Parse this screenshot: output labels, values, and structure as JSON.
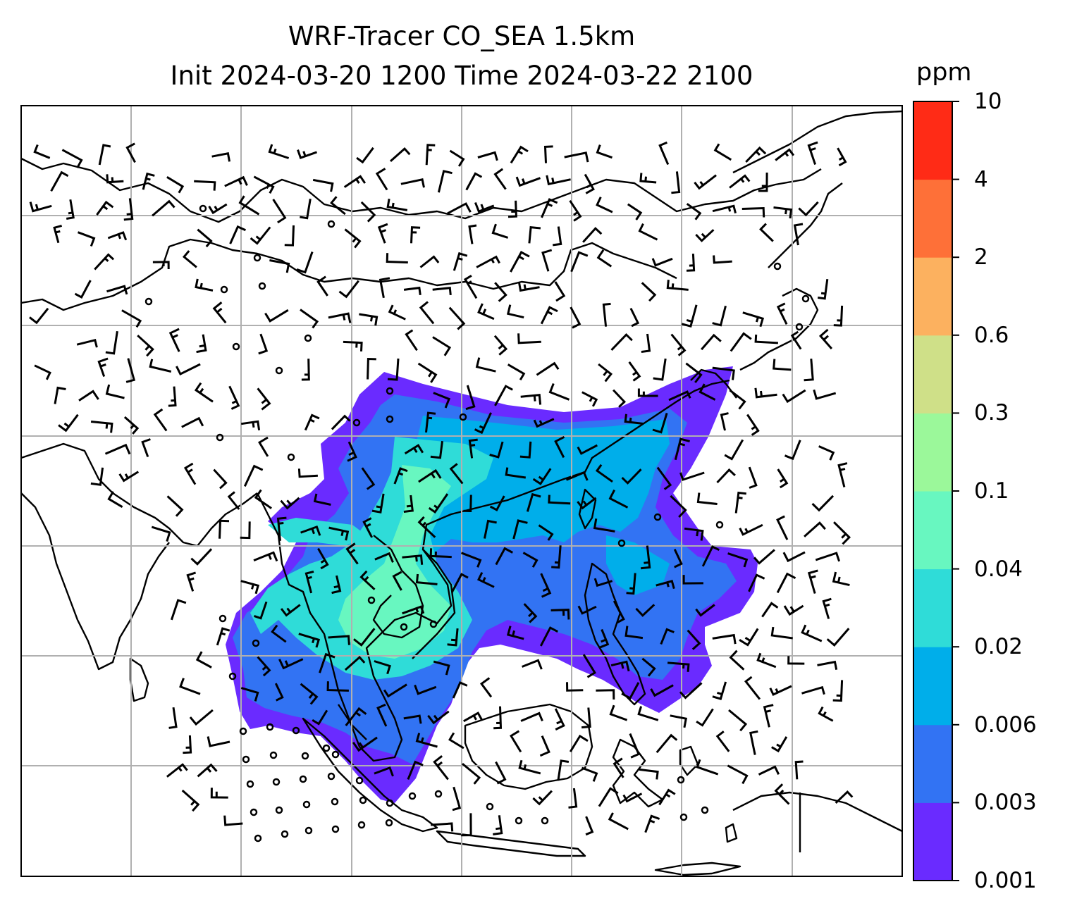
{
  "figure": {
    "title_line1": "WRF-Tracer CO_SEA 1.5km",
    "title_line2": "Init 2024-03-20 1200 Time 2024-03-22 2100"
  },
  "colorbar": {
    "unit": "ppm",
    "levels": [
      "0.001",
      "0.003",
      "0.006",
      "0.02",
      "0.04",
      "0.1",
      "0.3",
      "0.6",
      "2",
      "4",
      "10"
    ],
    "colors": [
      "#6a2bff",
      "#3273f3",
      "#00aeea",
      "#2fdcd8",
      "#68f7c0",
      "#9bf89a",
      "#cfe088",
      "#fcb15f",
      "#fe7038",
      "#ff2b16"
    ]
  },
  "map": {
    "background": "#ffffff",
    "coastline_color": "#000000",
    "gridline_color": "#b0b0b0",
    "calm_marker": "open circle",
    "wind_symbol": "wind barbs"
  }
}
